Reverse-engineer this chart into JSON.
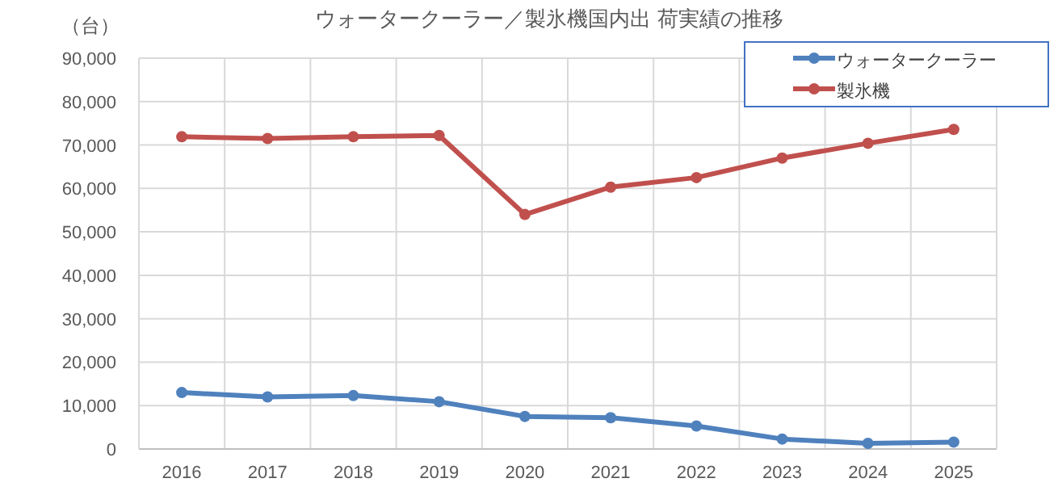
{
  "chart_data": {
    "type": "line",
    "title": "ウォータークーラー／製氷機国内出 荷実績の推移",
    "ylabel": "（台）",
    "categories": [
      "2016",
      "2017",
      "2018",
      "2019",
      "2020",
      "2021",
      "2022",
      "2023",
      "2024",
      "2025"
    ],
    "series": [
      {
        "name": "ウォータークーラー",
        "color": "#4f81bd",
        "values": [
          13000,
          12000,
          12300,
          10900,
          7500,
          7200,
          5300,
          2300,
          1300,
          1600
        ]
      },
      {
        "name": "製氷機",
        "color": "#c0504d",
        "values": [
          71900,
          71500,
          71900,
          72200,
          54000,
          60300,
          62500,
          67000,
          70400,
          73600
        ]
      }
    ],
    "ylim": [
      0,
      90000
    ],
    "yticks": [
      0,
      {
        "value": 10000,
        "label": "10,000"
      },
      {
        "value": 20000,
        "label": "20,000"
      },
      {
        "value": 30000,
        "label": "30,000"
      },
      {
        "value": 40000,
        "label": "40,000"
      },
      {
        "value": 50000,
        "label": "50,000"
      },
      {
        "value": 60000,
        "label": "60,000"
      },
      {
        "value": 70000,
        "label": "70,000"
      },
      {
        "value": 80000,
        "label": "80,000"
      },
      {
        "value": 90000,
        "label": "90,000"
      }
    ],
    "grid": true,
    "legend": "top right",
    "marker": "circle",
    "line_style": "solid"
  }
}
